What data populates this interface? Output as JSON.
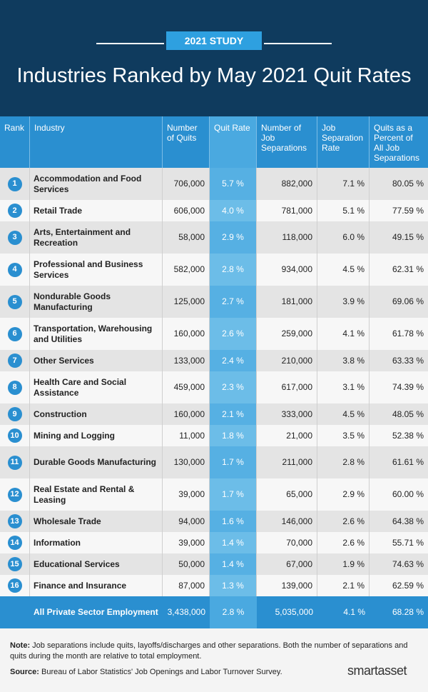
{
  "header": {
    "badge": "2021 STUDY",
    "title": "Industries Ranked by May 2021 Quit Rates"
  },
  "table": {
    "columns": [
      "Rank",
      "Industry",
      "Number of Quits",
      "Quit Rate",
      "Number of Job Separations",
      "Job Separation Rate",
      "Quits as a Percent of All Job Separations"
    ],
    "rows": [
      [
        "1",
        "Accommodation and Food Services",
        "706,000",
        "5.7 %",
        "882,000",
        "7.1 %",
        "80.05 %"
      ],
      [
        "2",
        "Retail Trade",
        "606,000",
        "4.0 %",
        "781,000",
        "5.1 %",
        "77.59 %"
      ],
      [
        "3",
        "Arts, Entertainment and Recreation",
        "58,000",
        "2.9 %",
        "118,000",
        "6.0 %",
        "49.15 %"
      ],
      [
        "4",
        "Professional and Business Services",
        "582,000",
        "2.8 %",
        "934,000",
        "4.5 %",
        "62.31 %"
      ],
      [
        "5",
        "Nondurable Goods Manufacturing",
        "125,000",
        "2.7 %",
        "181,000",
        "3.9 %",
        "69.06 %"
      ],
      [
        "6",
        "Transportation, Warehousing and Utilities",
        "160,000",
        "2.6 %",
        "259,000",
        "4.1 %",
        "61.78 %"
      ],
      [
        "7",
        "Other Services",
        "133,000",
        "2.4 %",
        "210,000",
        "3.8 %",
        "63.33 %"
      ],
      [
        "8",
        "Health Care and Social Assistance",
        "459,000",
        "2.3 %",
        "617,000",
        "3.1 %",
        "74.39 %"
      ],
      [
        "9",
        "Construction",
        "160,000",
        "2.1 %",
        "333,000",
        "4.5 %",
        "48.05 %"
      ],
      [
        "10",
        "Mining and Logging",
        "11,000",
        "1.8 %",
        "21,000",
        "3.5 %",
        "52.38 %"
      ],
      [
        "11",
        "Durable Goods Manufacturing",
        "130,000",
        "1.7 %",
        "211,000",
        "2.8 %",
        "61.61 %"
      ],
      [
        "12",
        "Real Estate and Rental & Leasing",
        "39,000",
        "1.7 %",
        "65,000",
        "2.9 %",
        "60.00 %"
      ],
      [
        "13",
        "Wholesale Trade",
        "94,000",
        "1.6 %",
        "146,000",
        "2.6 %",
        "64.38 %"
      ],
      [
        "14",
        "Information",
        "39,000",
        "1.4 %",
        "70,000",
        "2.6 %",
        "55.71 %"
      ],
      [
        "15",
        "Educational Services",
        "50,000",
        "1.4 %",
        "67,000",
        "1.9 %",
        "74.63 %"
      ],
      [
        "16",
        "Finance and Insurance",
        "87,000",
        "1.3 %",
        "139,000",
        "2.1 %",
        "62.59 %"
      ]
    ],
    "total": [
      "All Private Sector Employment",
      "3,438,000",
      "2.8 %",
      "5,035,000",
      "4.1 %",
      "68.28 %"
    ]
  },
  "notes": {
    "note_label": "Note:",
    "note": "Job separations include quits, layoffs/discharges and other separations. Both the number of separations and quits during the month are relative to total employment.",
    "source_label": "Source:",
    "source": "Bureau of Labor Statistics' Job Openings and Labor Turnover Survey.",
    "logo": "smartasset"
  }
}
